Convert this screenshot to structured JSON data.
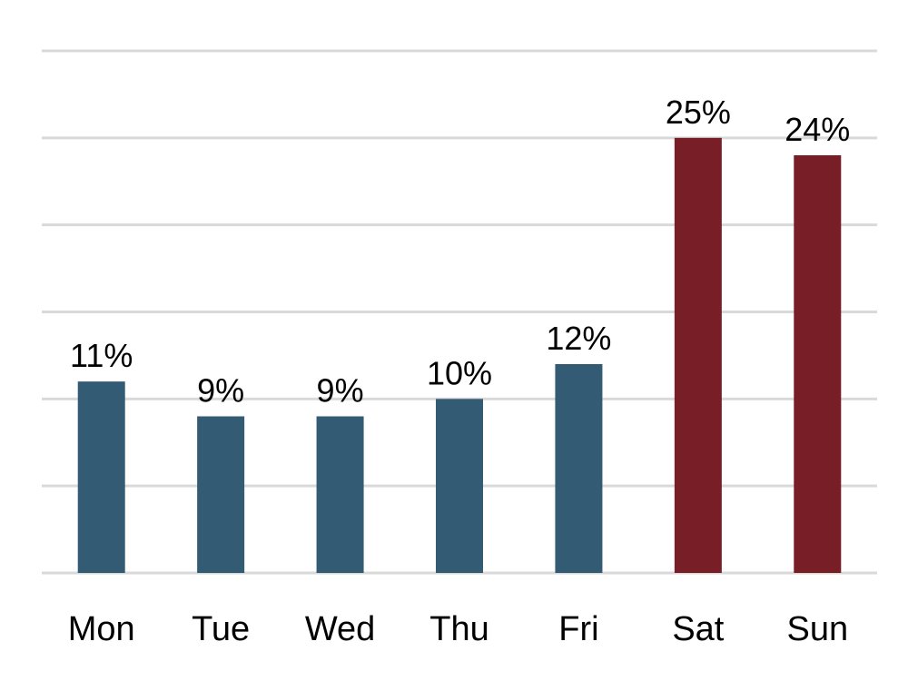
{
  "chart_data": {
    "type": "bar",
    "title": "",
    "xlabel": "",
    "ylabel": "",
    "categories": [
      "Mon",
      "Tue",
      "Wed",
      "Thu",
      "Fri",
      "Sat",
      "Sun"
    ],
    "values": [
      11,
      9,
      9,
      10,
      12,
      25,
      24
    ],
    "value_labels": [
      "11%",
      "9%",
      "9%",
      "10%",
      "12%",
      "25%",
      "24%"
    ],
    "value_unit": "%",
    "ylim": [
      0,
      30
    ],
    "y_gridline_step": 5,
    "y_tick_labels_shown": false,
    "grid": true,
    "legend": "none",
    "bar_colors": [
      "#345b74",
      "#345b74",
      "#345b74",
      "#345b74",
      "#345b74",
      "#771e27",
      "#771e27"
    ],
    "colors": {
      "weekday": "#345b74",
      "weekend": "#771e27",
      "gridline": "#d9d9d9"
    }
  }
}
